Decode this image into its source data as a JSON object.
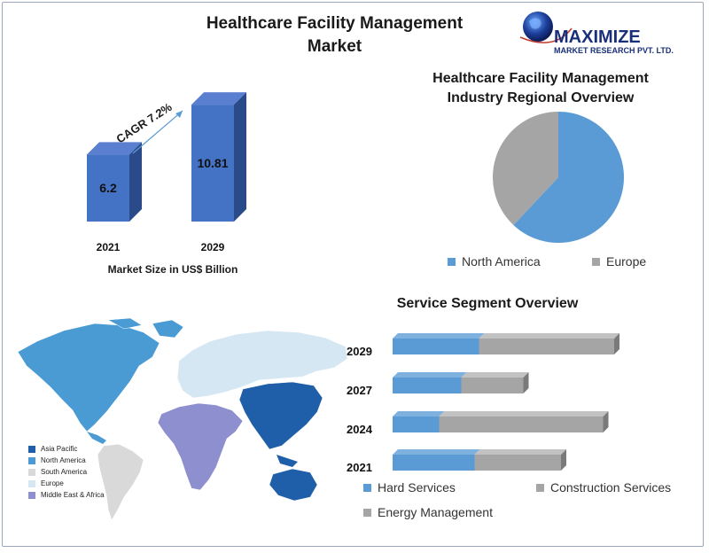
{
  "title_line1": "Healthcare Facility Management",
  "title_line2": "Market",
  "logo": {
    "name": "MAXIMIZE",
    "subtitle": "MARKET RESEARCH PVT. LTD."
  },
  "colors": {
    "bar_front": "#4472c4",
    "bar_dark": "#2b4a8a",
    "north_america": "#5b9bd5",
    "europe": "#a5a5a5",
    "hard_services": "#5b9bd5",
    "construction": "#a5a5a5",
    "asia_pacific": "#1f5ea8",
    "south_america": "#d9d9d9",
    "europe_map": "#d6e7f4",
    "mea": "#8e8fcf"
  },
  "chart_data": [
    {
      "type": "bar",
      "categories": [
        "2021",
        "2029"
      ],
      "values": [
        6.2,
        10.81
      ],
      "data_labels": [
        "6.2",
        "10.81"
      ],
      "annotation": "CAGR 7.2%",
      "xlabel": "Market Size in US$ Billion"
    },
    {
      "type": "pie",
      "title_line1": "Healthcare Facility Management",
      "title_line2": "Industry Regional Overview",
      "labels": [
        "North America",
        "Europe"
      ],
      "values": [
        62,
        38
      ]
    },
    {
      "type": "bar",
      "orientation": "horizontal",
      "stacked": true,
      "title": "Service Segment Overview",
      "categories": [
        "2029",
        "2027",
        "2024",
        "2021"
      ],
      "series": [
        {
          "name": "Hard Services",
          "values": [
            39,
            31,
            21,
            37
          ]
        },
        {
          "name": "Construction Services",
          "values": [
            61,
            28,
            74,
            39
          ]
        }
      ],
      "legend": [
        "Hard Services",
        "Construction Services",
        "Energy Management"
      ]
    }
  ],
  "map_legend": [
    "Asia Pacific",
    "North America",
    "South America",
    "Europe",
    "Middle East & Africa"
  ]
}
